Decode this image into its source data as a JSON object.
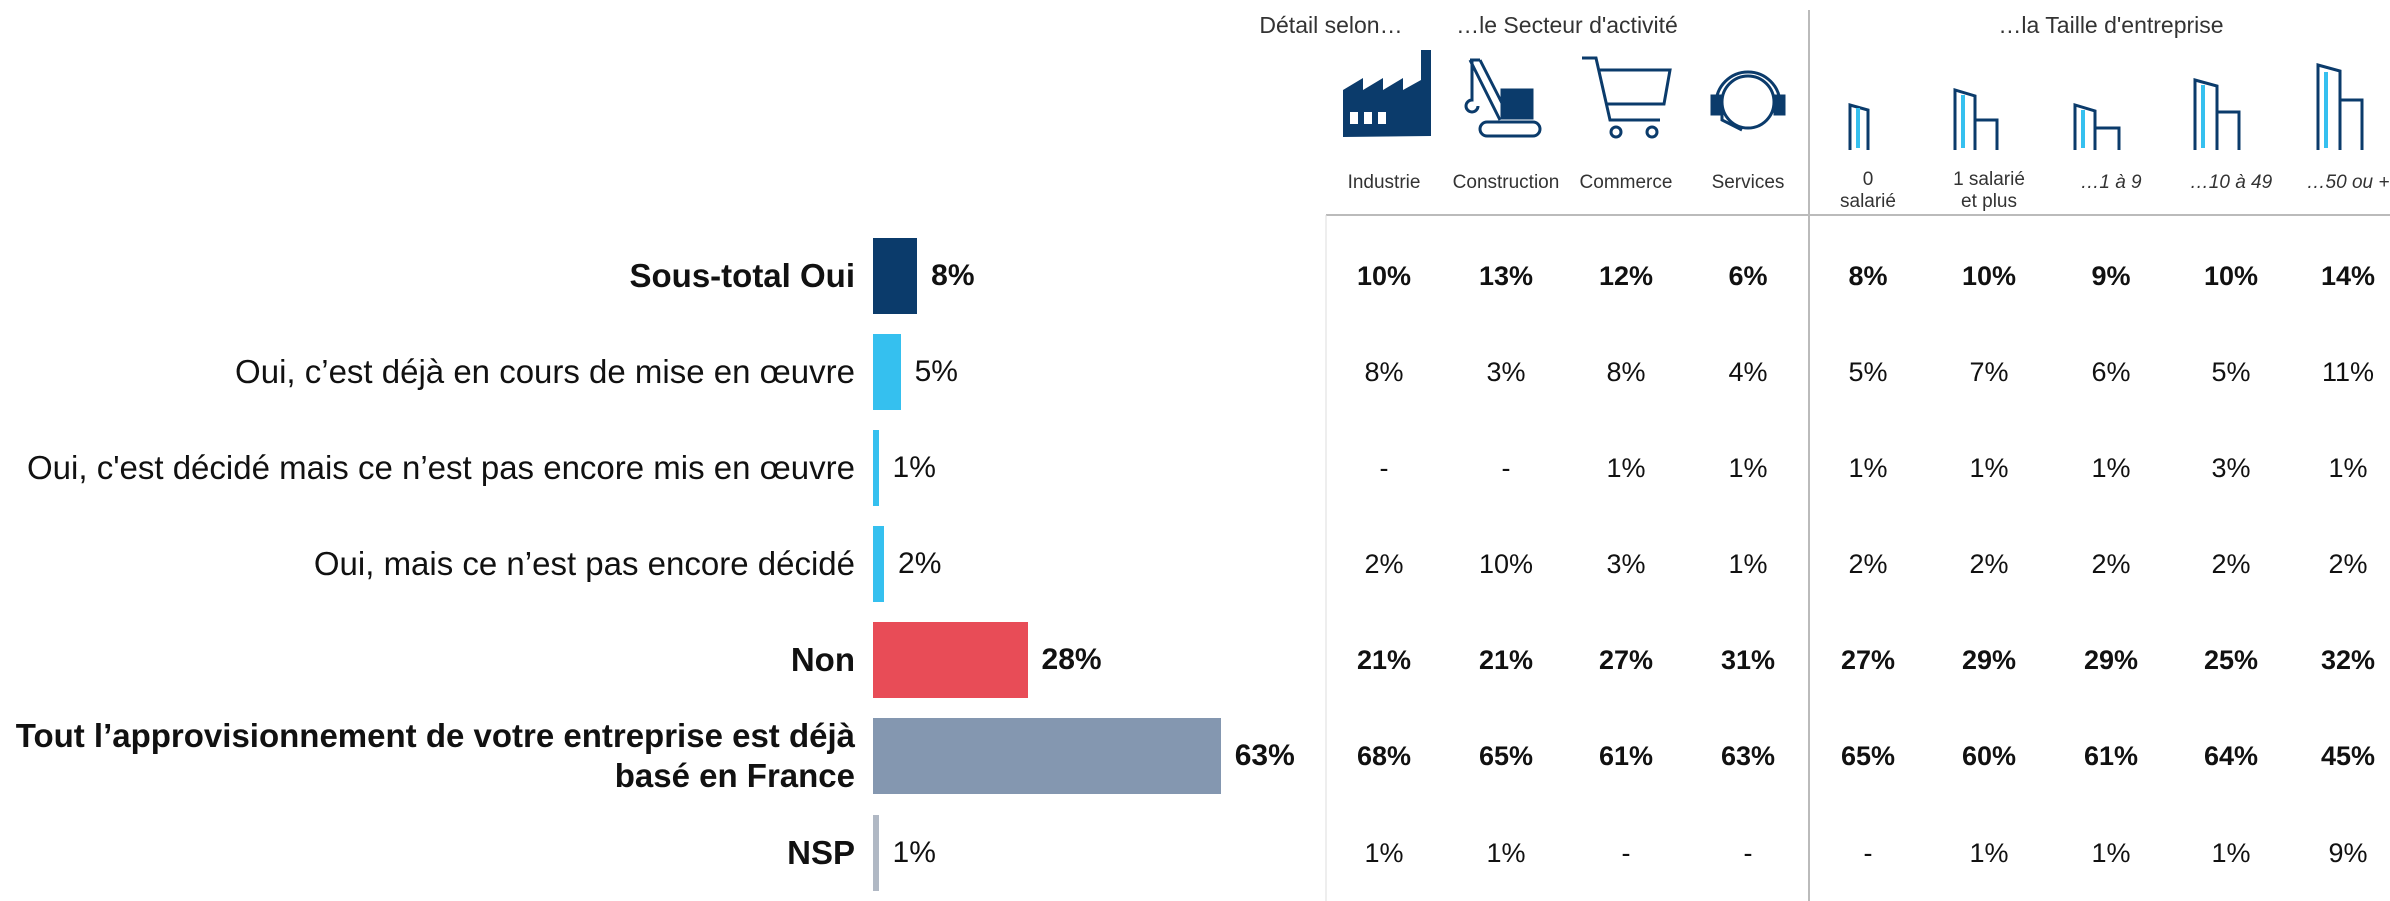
{
  "chart_data": {
    "type": "bar",
    "categories": [
      "Sous-total Oui",
      "Oui, c’est déjà en cours de mise en œuvre",
      "Oui, c'est décidé mais ce n’est pas encore mis en œuvre",
      "Oui, mais ce n’est pas encore décidé",
      "Non",
      "Tout l’approvisionnement de votre entreprise est déjà basé en France",
      "NSP"
    ],
    "values": [
      8,
      5,
      1,
      2,
      28,
      63,
      1
    ],
    "value_labels": [
      "8%",
      "5%",
      "1%",
      "2%",
      "28%",
      "63%",
      "1%"
    ],
    "colors": [
      "#0b3b6b",
      "#35c0ef",
      "#35c0ef",
      "#35c0ef",
      "#e84c57",
      "#8497b0",
      "#b0b8c4"
    ]
  },
  "table": {
    "groups": [
      "Détail selon…",
      "…le Secteur d'activité",
      "…la Taille d'entreprise"
    ],
    "columns": [
      "Industrie",
      "Construction",
      "Commerce",
      "Services",
      "0 salarié",
      "1 salarié et plus",
      "…1 à 9",
      "…10 à 49",
      "…50 ou +"
    ],
    "rows": [
      [
        "10%",
        "13%",
        "12%",
        "6%",
        "8%",
        "10%",
        "9%",
        "10%",
        "14%"
      ],
      [
        "8%",
        "3%",
        "8%",
        "4%",
        "5%",
        "7%",
        "6%",
        "5%",
        "11%"
      ],
      [
        "-",
        "-",
        "1%",
        "1%",
        "1%",
        "1%",
        "1%",
        "3%",
        "1%"
      ],
      [
        "2%",
        "10%",
        "3%",
        "1%",
        "2%",
        "2%",
        "2%",
        "2%",
        "2%"
      ],
      [
        "21%",
        "21%",
        "27%",
        "31%",
        "27%",
        "29%",
        "29%",
        "25%",
        "32%"
      ],
      [
        "68%",
        "65%",
        "61%",
        "63%",
        "65%",
        "60%",
        "61%",
        "64%",
        "45%"
      ],
      [
        "1%",
        "1%",
        "-",
        "-",
        "-",
        "1%",
        "1%",
        "1%",
        "9%"
      ]
    ]
  }
}
